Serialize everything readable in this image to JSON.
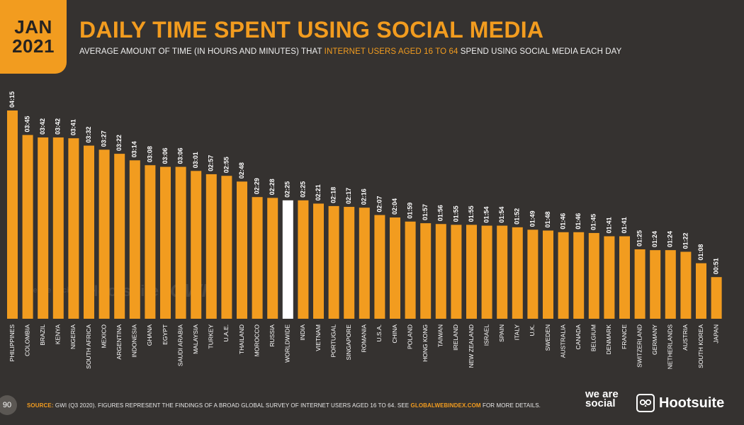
{
  "header": {
    "month": "JAN",
    "year": "2021",
    "title": "DAILY TIME SPENT USING SOCIAL MEDIA",
    "subtitle_pre": "AVERAGE AMOUNT OF TIME (IN HOURS AND MINUTES) THAT ",
    "subtitle_highlight": "INTERNET USERS AGED 16 TO 64",
    "subtitle_post": " SPEND USING SOCIAL MEDIA EACH DAY"
  },
  "watermark": {
    "wearesocial": "we are social",
    "hootsuite": "Hootsuite",
    "gwi": "GWI."
  },
  "footer": {
    "page_number": "90",
    "source_label": "SOURCE:",
    "source_text": " GWI (Q3 2020). FIGURES REPRESENT THE FINDINGS OF A BROAD GLOBAL SURVEY OF INTERNET USERS AGED 16 TO 64. SEE ",
    "source_link": "GLOBALWEBINDEX.COM",
    "source_tail": " FOR MORE DETAILS.",
    "brand_wearesocial": "we are social",
    "brand_hootsuite": "Hootsuite"
  },
  "colors": {
    "bar": "#f29c1f",
    "highlight_bar": "#ffffff",
    "background": "#353230"
  },
  "icons": {
    "hootsuite": "owl-icon"
  },
  "chart_data": {
    "type": "bar",
    "title": "DAILY TIME SPENT USING SOCIAL MEDIA",
    "xlabel": "",
    "ylabel": "",
    "ylim": [
      0,
      255
    ],
    "grid": false,
    "highlight_category": "WORLDWIDE",
    "categories": [
      "PHILIPPINES",
      "COLOMBIA",
      "BRAZIL",
      "KENYA",
      "NIGERIA",
      "SOUTH AFRICA",
      "MEXICO",
      "ARGENTINA",
      "INDONESIA",
      "GHANA",
      "EGYPT",
      "SAUDI ARABIA",
      "MALAYSIA",
      "TURKEY",
      "U.A.E.",
      "THAILAND",
      "MOROCCO",
      "RUSSIA",
      "WORLDWIDE",
      "INDIA",
      "VIETNAM",
      "PORTUGAL",
      "SINGAPORE",
      "ROMANIA",
      "U.S.A.",
      "CHINA",
      "POLAND",
      "HONG KONG",
      "TAIWAN",
      "IRELAND",
      "NEW ZEALAND",
      "ISRAEL",
      "SPAIN",
      "ITALY",
      "U.K.",
      "SWEDEN",
      "AUSTRALIA",
      "CANADA",
      "BELGIUM",
      "DENMARK",
      "FRANCE",
      "SWITZERLAND",
      "GERMANY",
      "NETHERLANDS",
      "AUSTRIA",
      "SOUTH KOREA",
      "JAPAN"
    ],
    "labels": [
      "04:15",
      "03:45",
      "03:42",
      "03:42",
      "03:41",
      "03:32",
      "03:27",
      "03:22",
      "03:14",
      "03:08",
      "03:06",
      "03:06",
      "03:01",
      "02:57",
      "02:55",
      "02:48",
      "02:29",
      "02:28",
      "02:25",
      "02:25",
      "02:21",
      "02:18",
      "02:17",
      "02:16",
      "02:07",
      "02:04",
      "01:59",
      "01:57",
      "01:56",
      "01:55",
      "01:55",
      "01:54",
      "01:54",
      "01:52",
      "01:49",
      "01:48",
      "01:46",
      "01:46",
      "01:45",
      "01:41",
      "01:41",
      "01:25",
      "01:24",
      "01:24",
      "01:22",
      "01:08",
      "00:51"
    ],
    "values": [
      255,
      225,
      222,
      222,
      221,
      212,
      207,
      202,
      194,
      188,
      186,
      186,
      181,
      177,
      175,
      168,
      149,
      148,
      145,
      145,
      141,
      138,
      137,
      136,
      127,
      124,
      119,
      117,
      116,
      115,
      115,
      114,
      114,
      112,
      109,
      108,
      106,
      106,
      105,
      101,
      101,
      85,
      84,
      84,
      82,
      68,
      51
    ]
  }
}
